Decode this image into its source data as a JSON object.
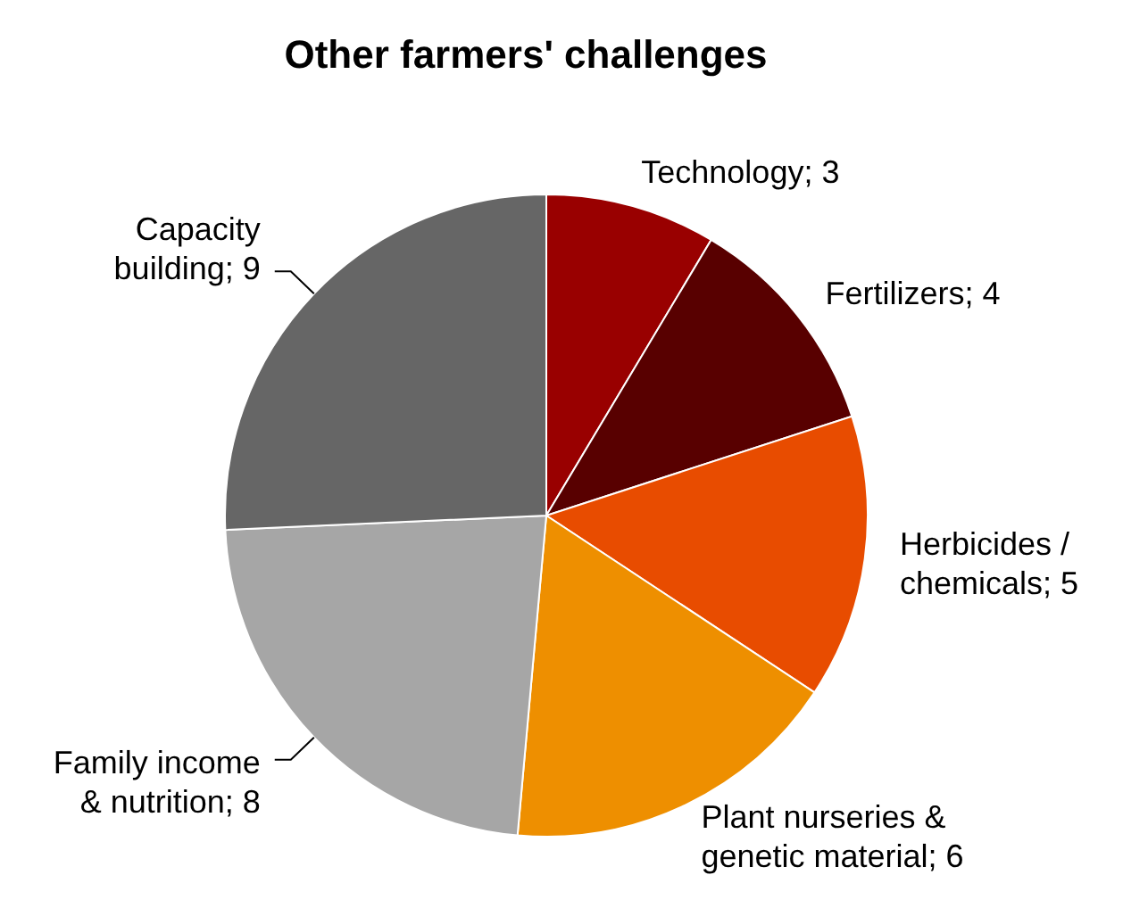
{
  "chart_data": {
    "type": "pie",
    "title": "Other farmers' challenges",
    "categories": [
      "Technology; 3",
      "Fertilizers; 4",
      "Herbicides / chemicals; 5",
      "Plant nurseries & genetic material; 6",
      "Family income & nutrition; 8",
      "Capacity building; 9"
    ],
    "values": [
      3,
      4,
      5,
      6,
      8,
      9
    ],
    "colors": [
      "#990000",
      "#580000",
      "#e84c00",
      "#ee8f00",
      "#a6a6a6",
      "#666666"
    ]
  }
}
